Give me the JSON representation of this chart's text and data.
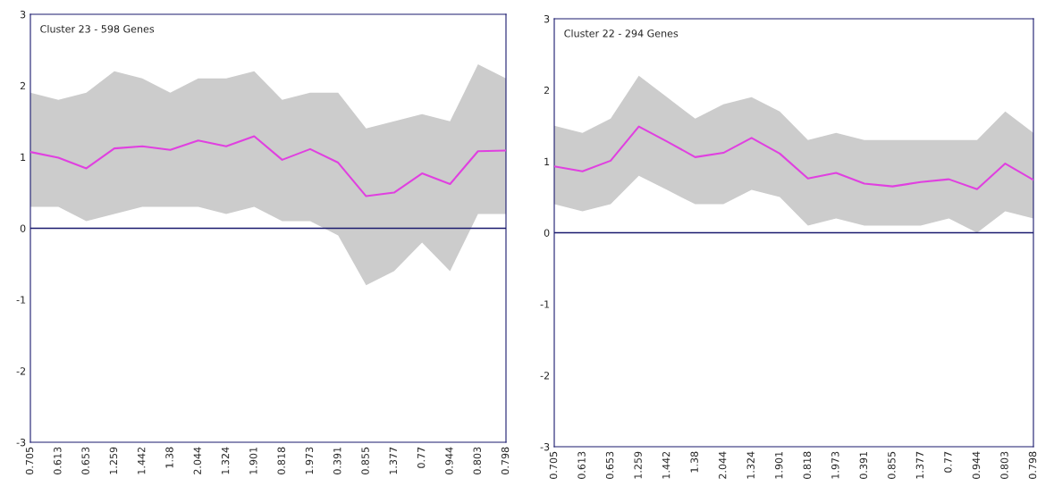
{
  "chart_data": [
    {
      "type": "line",
      "title": "Cluster 23 - 598 Genes",
      "categories": [
        "0.705",
        "0.613",
        "0.653",
        "1.259",
        "1.442",
        "1.38",
        "2.044",
        "1.324",
        "1.901",
        "0.818",
        "1.973",
        "0.391",
        "0.855",
        "1.377",
        "0.77",
        "0.944",
        "0.803",
        "0.798"
      ],
      "series": [
        {
          "color": "#e040e0",
          "values": [
            1.07,
            0.99,
            0.84,
            1.12,
            1.15,
            1.1,
            1.23,
            1.15,
            1.29,
            0.96,
            1.11,
            0.92,
            0.45,
            0.5,
            0.77,
            0.62,
            1.08,
            1.09
          ],
          "lower": [
            0.3,
            0.3,
            0.1,
            0.2,
            0.3,
            0.3,
            0.3,
            0.2,
            0.3,
            0.1,
            0.1,
            -0.1,
            -0.8,
            -0.6,
            -0.2,
            -0.6,
            0.2,
            0.2
          ],
          "upper": [
            1.9,
            1.8,
            1.9,
            2.2,
            2.1,
            1.9,
            2.1,
            2.1,
            2.2,
            1.8,
            1.9,
            1.9,
            1.4,
            1.5,
            1.6,
            1.5,
            2.3,
            2.1
          ]
        }
      ],
      "ylim": [
        -3,
        3
      ],
      "yticks": [
        -3,
        -2,
        -1,
        0,
        1,
        2,
        3
      ],
      "ref_lines": [
        {
          "axis": "y",
          "value": 0,
          "color": "#1a1a6e"
        }
      ],
      "grid": false,
      "legend": false
    },
    {
      "type": "line",
      "title": "Cluster 22 - 294 Genes",
      "categories": [
        "0.705",
        "0.613",
        "0.653",
        "1.259",
        "1.442",
        "1.38",
        "2.044",
        "1.324",
        "1.901",
        "0.818",
        "1.973",
        "0.391",
        "0.855",
        "1.377",
        "0.77",
        "0.944",
        "0.803",
        "0.798"
      ],
      "series": [
        {
          "color": "#e040e0",
          "values": [
            0.93,
            0.86,
            1.01,
            1.49,
            1.28,
            1.06,
            1.12,
            1.33,
            1.11,
            0.76,
            0.84,
            0.69,
            0.65,
            0.71,
            0.75,
            0.61,
            0.97,
            0.74
          ],
          "lower": [
            0.4,
            0.3,
            0.4,
            0.8,
            0.6,
            0.4,
            0.4,
            0.6,
            0.5,
            0.1,
            0.2,
            0.1,
            0.1,
            0.1,
            0.2,
            0.0,
            0.3,
            0.2
          ],
          "upper": [
            1.5,
            1.4,
            1.6,
            2.2,
            1.9,
            1.6,
            1.8,
            1.9,
            1.7,
            1.3,
            1.4,
            1.3,
            1.3,
            1.3,
            1.3,
            1.3,
            1.7,
            1.4
          ]
        }
      ],
      "ylim": [
        -3,
        3
      ],
      "yticks": [
        -3,
        -2,
        -1,
        0,
        1,
        2,
        3
      ],
      "ref_lines": [
        {
          "axis": "y",
          "value": 0,
          "color": "#1a1a6e"
        }
      ],
      "grid": false,
      "legend": false
    }
  ]
}
